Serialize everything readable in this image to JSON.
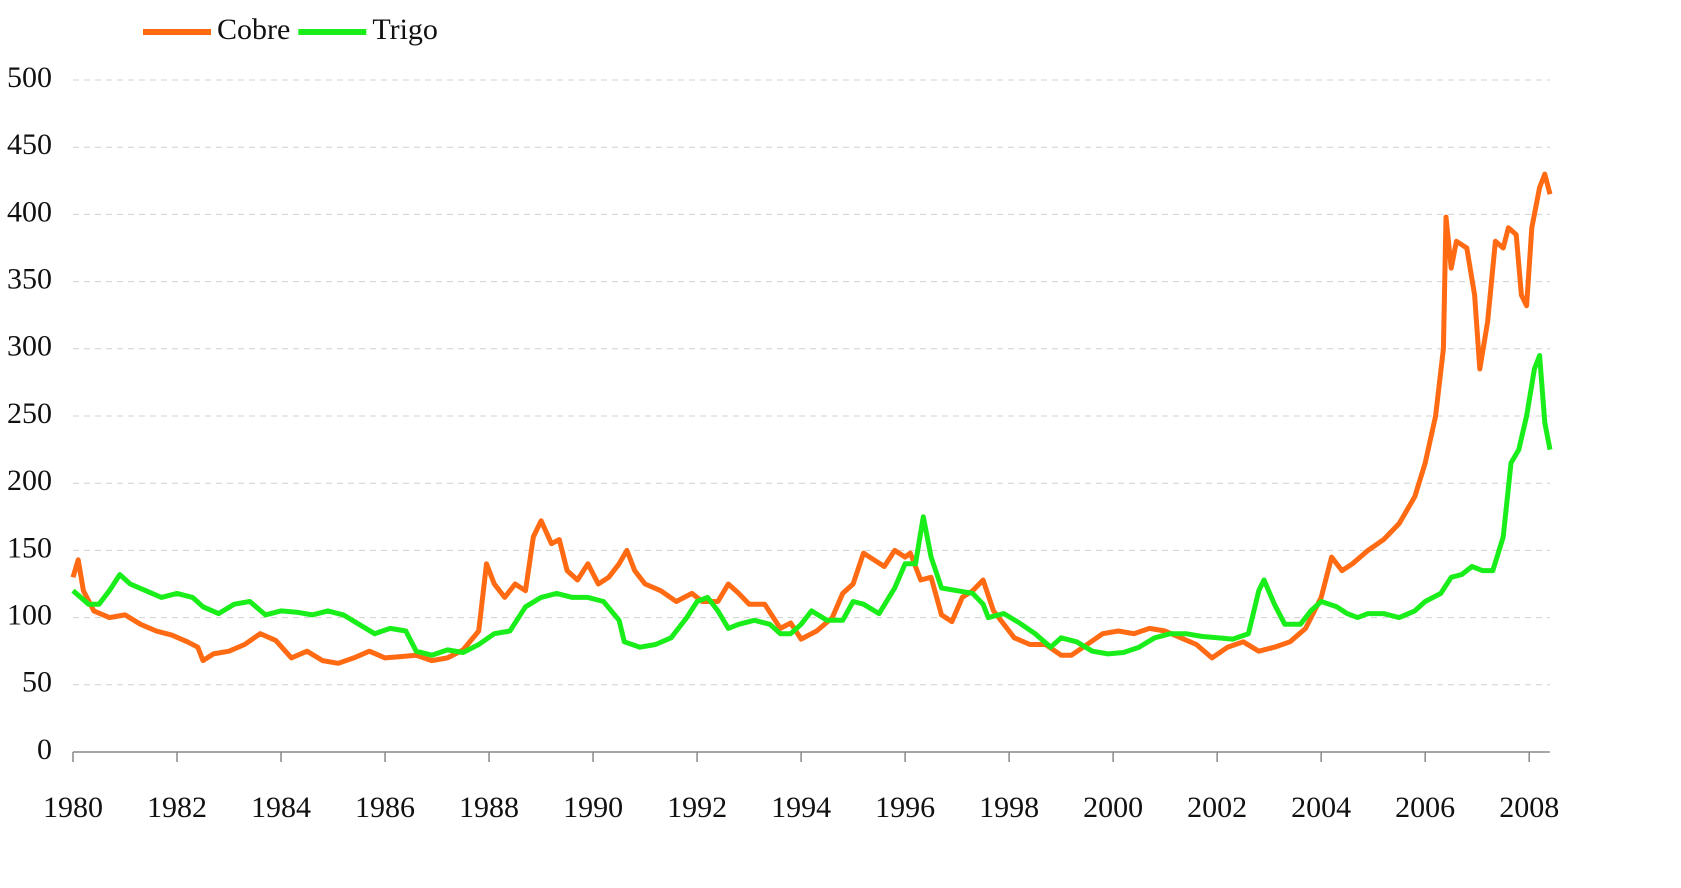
{
  "chart_data": {
    "type": "line",
    "xlim": [
      1980,
      2008.4
    ],
    "xticks": [
      1980,
      1982,
      1984,
      1986,
      1988,
      1990,
      1992,
      1994,
      1996,
      1998,
      2000,
      2002,
      2004,
      2006,
      2008
    ],
    "ylim": [
      0,
      500
    ],
    "yticks": [
      0,
      50,
      100,
      150,
      200,
      250,
      300,
      350,
      400,
      450,
      500
    ],
    "grid": true,
    "legend": "top-left",
    "series": [
      {
        "name": "Cobre",
        "color": "#ff6a13",
        "x": [
          1980.0,
          1980.1,
          1980.2,
          1980.4,
          1980.7,
          1981.0,
          1981.3,
          1981.6,
          1981.9,
          1982.2,
          1982.4,
          1982.5,
          1982.7,
          1983.0,
          1983.3,
          1983.6,
          1983.9,
          1984.2,
          1984.5,
          1984.8,
          1985.1,
          1985.4,
          1985.7,
          1986.0,
          1986.3,
          1986.6,
          1986.9,
          1987.2,
          1987.5,
          1987.8,
          1987.95,
          1988.1,
          1988.3,
          1988.5,
          1988.7,
          1988.85,
          1989.0,
          1989.2,
          1989.35,
          1989.5,
          1989.7,
          1989.9,
          1990.1,
          1990.3,
          1990.5,
          1990.65,
          1990.8,
          1991.0,
          1991.3,
          1991.6,
          1991.9,
          1992.1,
          1992.4,
          1992.6,
          1992.8,
          1993.0,
          1993.3,
          1993.6,
          1993.8,
          1994.0,
          1994.3,
          1994.6,
          1994.8,
          1995.0,
          1995.2,
          1995.4,
          1995.6,
          1995.8,
          1996.0,
          1996.1,
          1996.3,
          1996.5,
          1996.7,
          1996.9,
          1997.1,
          1997.3,
          1997.5,
          1997.7,
          1997.9,
          1998.1,
          1998.4,
          1998.7,
          1999.0,
          1999.2,
          1999.5,
          1999.8,
          2000.1,
          2000.4,
          2000.7,
          2001.0,
          2001.3,
          2001.6,
          2001.9,
          2002.2,
          2002.5,
          2002.8,
          2003.1,
          2003.4,
          2003.7,
          2004.0,
          2004.2,
          2004.4,
          2004.6,
          2004.9,
          2005.2,
          2005.5,
          2005.8,
          2006.0,
          2006.2,
          2006.35,
          2006.4,
          2006.5,
          2006.6,
          2006.8,
          2006.95,
          2007.05,
          2007.2,
          2007.35,
          2007.5,
          2007.6,
          2007.75,
          2007.85,
          2007.95,
          2008.05,
          2008.2,
          2008.3,
          2008.4
        ],
        "values": [
          130,
          143,
          120,
          105,
          100,
          102,
          95,
          90,
          87,
          82,
          78,
          68,
          73,
          75,
          80,
          88,
          83,
          70,
          75,
          68,
          66,
          70,
          75,
          70,
          71,
          72,
          68,
          70,
          76,
          90,
          140,
          125,
          115,
          125,
          120,
          160,
          172,
          155,
          158,
          135,
          128,
          140,
          125,
          130,
          140,
          150,
          135,
          125,
          120,
          112,
          118,
          112,
          112,
          125,
          118,
          110,
          110,
          92,
          96,
          84,
          90,
          100,
          118,
          125,
          148,
          143,
          138,
          150,
          145,
          148,
          128,
          130,
          102,
          97,
          115,
          120,
          128,
          105,
          95,
          85,
          80,
          80,
          72,
          72,
          80,
          88,
          90,
          88,
          92,
          90,
          85,
          80,
          70,
          78,
          82,
          75,
          78,
          82,
          92,
          115,
          145,
          135,
          140,
          150,
          158,
          170,
          190,
          215,
          250,
          300,
          398,
          360,
          380,
          375,
          340,
          285,
          320,
          380,
          375,
          390,
          385,
          340,
          332,
          390,
          420,
          430,
          415
        ]
      },
      {
        "name": "Trigo",
        "color": "#1aee1a",
        "x": [
          1980.0,
          1980.3,
          1980.5,
          1980.7,
          1980.9,
          1981.1,
          1981.4,
          1981.7,
          1982.0,
          1982.3,
          1982.5,
          1982.8,
          1983.1,
          1983.4,
          1983.7,
          1984.0,
          1984.3,
          1984.6,
          1984.9,
          1985.2,
          1985.5,
          1985.8,
          1986.1,
          1986.4,
          1986.6,
          1986.9,
          1987.2,
          1987.5,
          1987.8,
          1988.1,
          1988.4,
          1988.7,
          1989.0,
          1989.3,
          1989.6,
          1989.9,
          1990.2,
          1990.5,
          1990.6,
          1990.9,
          1991.2,
          1991.5,
          1991.8,
          1992.0,
          1992.2,
          1992.4,
          1992.6,
          1992.8,
          1993.1,
          1993.4,
          1993.6,
          1993.8,
          1994.0,
          1994.2,
          1994.5,
          1994.8,
          1995.0,
          1995.2,
          1995.5,
          1995.8,
          1996.0,
          1996.2,
          1996.35,
          1996.5,
          1996.7,
          1997.0,
          1997.3,
          1997.5,
          1997.6,
          1997.9,
          1998.2,
          1998.5,
          1998.8,
          1999.0,
          1999.3,
          1999.6,
          1999.9,
          2000.2,
          2000.5,
          2000.8,
          2001.1,
          2001.4,
          2001.7,
          2002.0,
          2002.3,
          2002.6,
          2002.8,
          2002.9,
          2003.1,
          2003.3,
          2003.6,
          2003.8,
          2004.0,
          2004.3,
          2004.5,
          2004.7,
          2004.9,
          2005.2,
          2005.5,
          2005.8,
          2006.0,
          2006.3,
          2006.5,
          2006.7,
          2006.9,
          2007.1,
          2007.3,
          2007.5,
          2007.65,
          2007.8,
          2007.95,
          2008.1,
          2008.2,
          2008.3,
          2008.4
        ],
        "values": [
          120,
          110,
          110,
          120,
          132,
          125,
          120,
          115,
          118,
          115,
          108,
          103,
          110,
          112,
          102,
          105,
          104,
          102,
          105,
          102,
          95,
          88,
          92,
          90,
          75,
          72,
          76,
          74,
          80,
          88,
          90,
          108,
          115,
          118,
          115,
          115,
          112,
          98,
          82,
          78,
          80,
          85,
          100,
          112,
          115,
          105,
          92,
          95,
          98,
          95,
          88,
          88,
          95,
          105,
          98,
          98,
          112,
          110,
          103,
          122,
          140,
          140,
          175,
          145,
          122,
          120,
          118,
          110,
          100,
          103,
          96,
          88,
          78,
          85,
          82,
          75,
          73,
          74,
          78,
          85,
          88,
          88,
          86,
          85,
          84,
          88,
          120,
          128,
          110,
          95,
          95,
          105,
          112,
          108,
          103,
          100,
          103,
          103,
          100,
          105,
          112,
          118,
          130,
          132,
          138,
          135,
          135,
          160,
          215,
          225,
          250,
          285,
          295,
          245,
          225
        ]
      }
    ]
  }
}
